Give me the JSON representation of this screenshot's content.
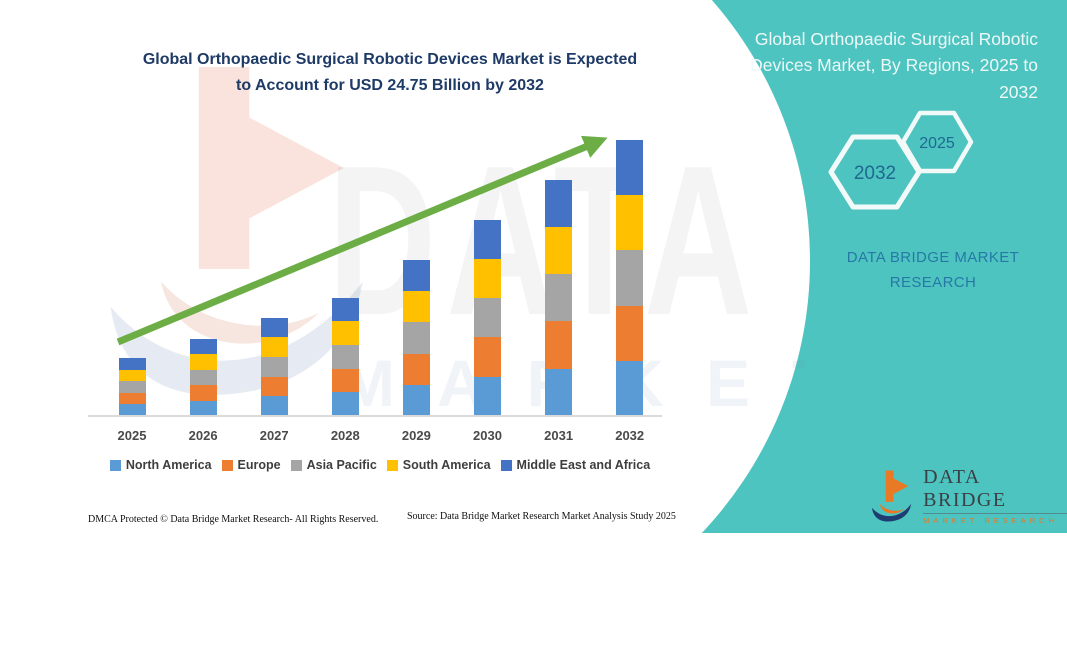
{
  "main_title": {
    "lines": [
      "Global Orthopaedic Surgical Robotic Devices Market is Expected",
      "to Account for USD 24.75 Billion by 2032"
    ]
  },
  "right_panel": {
    "title_lines": [
      "Global Orthopaedic Surgical Robotic",
      "Devices Market, By Regions, 2025 to",
      "2032"
    ],
    "hex_large_year": "2032",
    "hex_small_year": "2025",
    "brand_lines": [
      "DATA BRIDGE MARKET",
      "RESEARCH"
    ]
  },
  "watermark": {
    "line1": "DATA BRIDGE",
    "line2": "MARKET RESEARCH"
  },
  "footer": {
    "logo_name": "DATA BRIDGE",
    "logo_sub": "MARKET RESEARCH",
    "dmca": "DMCA Protected © Data Bridge Market Research-  All Rights Reserved.",
    "source": "Source: Data Bridge Market Research  Market Analysis Study 2025"
  },
  "colors": {
    "teal_panel": "#4EC4C0",
    "title_navy": "#1E3A66",
    "arrow_green": "#6CAE45",
    "hex_year_text": "#1F6890",
    "brand_blue": "#2679A6",
    "logo_orange": "#E87A25",
    "logo_navy": "#1E3C72"
  },
  "chart_data": {
    "type": "bar",
    "stacked": true,
    "title": "Global Orthopaedic Surgical Robotic Devices Market is Expected to Account for USD 24.75 Billion by 2032",
    "value_unit": "USD Billion",
    "categories": [
      "2025",
      "2026",
      "2027",
      "2028",
      "2029",
      "2030",
      "2031",
      "2032"
    ],
    "series": [
      {
        "name": "North America",
        "color": "#5B9BD5",
        "values": [
          1.04,
          1.38,
          1.76,
          2.12,
          2.8,
          3.52,
          4.24,
          4.95
        ]
      },
      {
        "name": "Europe",
        "color": "#ED7D31",
        "values": [
          1.04,
          1.38,
          1.76,
          2.12,
          2.8,
          3.52,
          4.24,
          4.95
        ]
      },
      {
        "name": "Asia Pacific",
        "color": "#A5A5A5",
        "values": [
          1.04,
          1.38,
          1.76,
          2.12,
          2.8,
          3.52,
          4.24,
          4.95
        ]
      },
      {
        "name": "South America",
        "color": "#FFC000",
        "values": [
          1.04,
          1.38,
          1.76,
          2.12,
          2.8,
          3.52,
          4.24,
          4.95
        ]
      },
      {
        "name": "Middle East and Africa",
        "color": "#4472C4",
        "values": [
          1.04,
          1.38,
          1.76,
          2.12,
          2.8,
          3.52,
          4.24,
          4.95
        ]
      }
    ],
    "totals": [
      5.2,
      6.9,
      8.8,
      10.6,
      14.0,
      17.6,
      21.2,
      24.75
    ],
    "legend_position": "bottom",
    "grid": false,
    "annotations": [
      "upward trend arrow"
    ]
  }
}
